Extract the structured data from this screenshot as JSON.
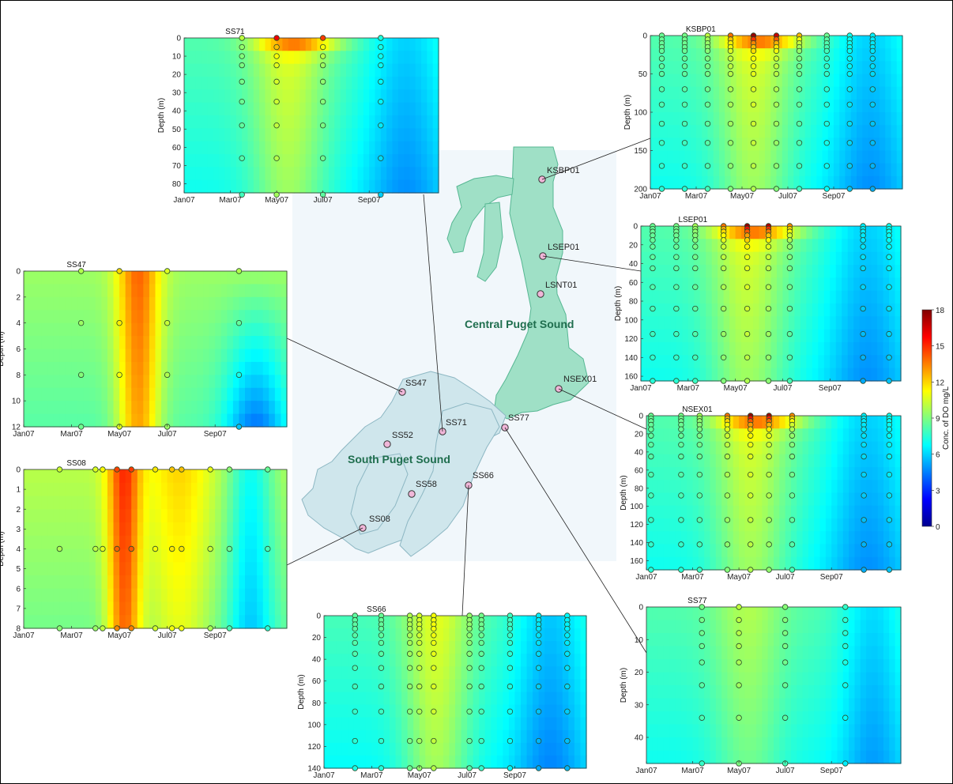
{
  "figure": {
    "regions": [
      "Central Puget Sound",
      "South Puget Sound"
    ],
    "colorbar": {
      "label": "Conc. of DO mg/L",
      "ticks": [
        0,
        3,
        6,
        9,
        12,
        15,
        18
      ]
    }
  },
  "stations": [
    "KSBP01",
    "LSEP01",
    "LSNT01",
    "NSEX01",
    "SS77",
    "SS71",
    "SS47",
    "SS52",
    "SS58",
    "SS66",
    "SS08"
  ],
  "chart_data": [
    {
      "type": "heatmap",
      "title": "SS71",
      "ylabel": "Depth (m)",
      "ylim": [
        0,
        85
      ],
      "xlim": [
        0,
        11
      ],
      "x_ticks": [
        "Jan07",
        "Mar07",
        "May07",
        "Jul07",
        "Sep07"
      ],
      "y_ticks": [
        0,
        10,
        20,
        30,
        40,
        50,
        60,
        70,
        80
      ],
      "samples": [
        {
          "t": 2.5,
          "depths": [
            0,
            5,
            10,
            15,
            24,
            35,
            48,
            66,
            86
          ]
        },
        {
          "t": 4.0,
          "depths": [
            0,
            5,
            10,
            15,
            24,
            35,
            48,
            66,
            86
          ]
        },
        {
          "t": 6.0,
          "depths": [
            0,
            5,
            10,
            15,
            24,
            35,
            48,
            66,
            86
          ]
        },
        {
          "t": 8.5,
          "depths": [
            0,
            5,
            10,
            15,
            24,
            35,
            48,
            66,
            86
          ]
        }
      ]
    },
    {
      "type": "heatmap",
      "title": "KSBP01",
      "ylabel": "Depth (m)",
      "ylim": [
        0,
        200
      ],
      "xlim": [
        0,
        11
      ],
      "x_ticks": [
        "Jan07",
        "Mar07",
        "May07",
        "Jul07",
        "Sep07"
      ],
      "y_ticks": [
        0,
        50,
        100,
        150,
        200
      ],
      "samples": [
        {
          "t": 0.5,
          "depths": [
            0,
            5,
            10,
            15,
            20,
            30,
            40,
            50,
            70,
            90,
            115,
            140,
            170,
            200
          ]
        },
        {
          "t": 1.5,
          "depths": [
            0,
            5,
            10,
            15,
            20,
            30,
            40,
            50,
            70,
            90,
            115,
            140,
            170,
            200
          ]
        },
        {
          "t": 2.5,
          "depths": [
            0,
            5,
            10,
            15,
            20,
            30,
            40,
            50,
            70,
            90,
            115,
            140,
            170,
            200
          ]
        },
        {
          "t": 3.5,
          "depths": [
            0,
            5,
            10,
            15,
            20,
            30,
            40,
            50,
            70,
            90,
            115,
            140,
            170,
            200
          ]
        },
        {
          "t": 4.5,
          "depths": [
            0,
            5,
            10,
            15,
            20,
            30,
            40,
            50,
            70,
            90,
            115,
            140,
            170,
            200
          ]
        },
        {
          "t": 5.5,
          "depths": [
            0,
            5,
            10,
            15,
            20,
            30,
            40,
            50,
            70,
            90,
            115,
            140,
            170,
            200
          ]
        },
        {
          "t": 6.5,
          "depths": [
            0,
            5,
            10,
            15,
            20,
            30,
            40,
            50,
            70,
            90,
            115,
            140,
            170,
            200
          ]
        },
        {
          "t": 7.7,
          "depths": [
            0,
            5,
            10,
            15,
            20,
            30,
            40,
            50,
            70,
            90,
            115,
            140,
            170,
            200
          ]
        },
        {
          "t": 8.7,
          "depths": [
            0,
            5,
            10,
            15,
            20,
            30,
            40,
            50,
            70,
            90,
            115,
            140,
            170,
            200
          ]
        },
        {
          "t": 9.7,
          "depths": [
            0,
            5,
            10,
            15,
            20,
            30,
            40,
            50,
            70,
            90,
            115,
            140,
            170,
            200
          ]
        }
      ]
    },
    {
      "type": "heatmap",
      "title": "LSEP01",
      "ylabel": "Depth (m)",
      "ylim": [
        0,
        165
      ],
      "xlim": [
        0,
        11
      ],
      "x_ticks": [
        "Jan07",
        "Mar07",
        "May07",
        "Jul07",
        "Sep07"
      ],
      "y_ticks": [
        0,
        20,
        40,
        60,
        80,
        100,
        120,
        140,
        160
      ],
      "samples": [
        {
          "t": 0.5,
          "depths": [
            0,
            3,
            6,
            10,
            15,
            22,
            33,
            45,
            65,
            88,
            115,
            140,
            165
          ]
        },
        {
          "t": 1.5,
          "depths": [
            0,
            3,
            6,
            10,
            15,
            22,
            33,
            45,
            65,
            88,
            115,
            140,
            165
          ]
        },
        {
          "t": 2.3,
          "depths": [
            0,
            3,
            6,
            10,
            15,
            22,
            33,
            45,
            65,
            88,
            115,
            140,
            165
          ]
        },
        {
          "t": 3.5,
          "depths": [
            0,
            3,
            6,
            10,
            15,
            22,
            33,
            45,
            65,
            88,
            115,
            140,
            165
          ]
        },
        {
          "t": 4.5,
          "depths": [
            0,
            3,
            6,
            10,
            15,
            22,
            33,
            45,
            65,
            88,
            115,
            140,
            165
          ]
        },
        {
          "t": 5.4,
          "depths": [
            0,
            3,
            6,
            10,
            15,
            22,
            33,
            45,
            65,
            88,
            115,
            140,
            165
          ]
        },
        {
          "t": 6.3,
          "depths": [
            0,
            3,
            6,
            10,
            15,
            22,
            33,
            45,
            65,
            88,
            115,
            140,
            165
          ]
        },
        {
          "t": 9.4,
          "depths": [
            0,
            3,
            6,
            10,
            15,
            22,
            33,
            45,
            65,
            88,
            115,
            140,
            165
          ]
        },
        {
          "t": 10.5,
          "depths": [
            0,
            3,
            6,
            10,
            15,
            22,
            33,
            45,
            65,
            88,
            115,
            140,
            165
          ]
        }
      ]
    },
    {
      "type": "heatmap",
      "title": "SS47",
      "ylabel": "Depth (m)",
      "ylim": [
        0,
        12
      ],
      "xlim": [
        0,
        11
      ],
      "x_ticks": [
        "Jan07",
        "Mar07",
        "May07",
        "Jul07",
        "Sep07"
      ],
      "y_ticks": [
        0,
        2,
        4,
        6,
        8,
        10,
        12
      ],
      "samples": [
        {
          "t": 2.4,
          "depths": [
            0,
            4,
            8,
            12
          ]
        },
        {
          "t": 4.0,
          "depths": [
            0,
            4,
            8,
            12
          ]
        },
        {
          "t": 6.0,
          "depths": [
            0,
            4,
            8,
            12
          ]
        },
        {
          "t": 9.0,
          "depths": [
            0,
            4,
            8,
            12
          ]
        }
      ]
    },
    {
      "type": "heatmap",
      "title": "NSEX01",
      "ylabel": "Depth (m)",
      "ylim": [
        0,
        170
      ],
      "xlim": [
        0,
        11
      ],
      "x_ticks": [
        "Jan07",
        "Mar07",
        "May07",
        "Jul07",
        "Sep07"
      ],
      "y_ticks": [
        0,
        20,
        40,
        60,
        80,
        100,
        120,
        140,
        160
      ],
      "samples": [
        {
          "t": 0.2,
          "depths": [
            0,
            3,
            6,
            10,
            15,
            22,
            32,
            45,
            65,
            88,
            115,
            142,
            170
          ]
        },
        {
          "t": 1.5,
          "depths": [
            0,
            3,
            6,
            10,
            15,
            22,
            32,
            45,
            65,
            88,
            115,
            142,
            170
          ]
        },
        {
          "t": 2.3,
          "depths": [
            0,
            3,
            6,
            10,
            15,
            22,
            32,
            45,
            65,
            88,
            115,
            142,
            170
          ]
        },
        {
          "t": 3.5,
          "depths": [
            0,
            3,
            6,
            10,
            15,
            22,
            32,
            45,
            65,
            88,
            115,
            142,
            170
          ]
        },
        {
          "t": 4.5,
          "depths": [
            0,
            3,
            6,
            10,
            15,
            22,
            32,
            45,
            65,
            88,
            115,
            142,
            170
          ]
        },
        {
          "t": 5.3,
          "depths": [
            0,
            3,
            6,
            10,
            15,
            22,
            32,
            45,
            65,
            88,
            115,
            142,
            170
          ]
        },
        {
          "t": 6.3,
          "depths": [
            0,
            3,
            6,
            10,
            15,
            22,
            32,
            45,
            65,
            88,
            115,
            142,
            170
          ]
        },
        {
          "t": 9.4,
          "depths": [
            0,
            3,
            6,
            10,
            15,
            22,
            32,
            45,
            65,
            88,
            115,
            142,
            170
          ]
        },
        {
          "t": 10.5,
          "depths": [
            0,
            3,
            6,
            10,
            15,
            22,
            32,
            45,
            65,
            88,
            115,
            142,
            170
          ]
        }
      ]
    },
    {
      "type": "heatmap",
      "title": "SS08",
      "ylabel": "Depth (m)",
      "ylim": [
        0,
        8
      ],
      "xlim": [
        0,
        11
      ],
      "x_ticks": [
        "Jan07",
        "Mar07",
        "May07",
        "Jul07",
        "Sep07"
      ],
      "y_ticks": [
        0,
        1,
        2,
        3,
        4,
        5,
        6,
        7,
        8
      ],
      "samples": [
        {
          "t": 1.5,
          "depths": [
            0,
            4,
            8
          ]
        },
        {
          "t": 3.0,
          "depths": [
            0,
            4,
            8
          ]
        },
        {
          "t": 3.3,
          "depths": [
            0,
            4,
            8
          ]
        },
        {
          "t": 3.9,
          "depths": [
            0,
            4,
            8
          ]
        },
        {
          "t": 4.5,
          "depths": [
            0,
            4,
            8
          ]
        },
        {
          "t": 5.5,
          "depths": [
            0,
            4,
            8
          ]
        },
        {
          "t": 6.2,
          "depths": [
            0,
            4,
            8
          ]
        },
        {
          "t": 6.6,
          "depths": [
            0,
            4,
            8
          ]
        },
        {
          "t": 7.8,
          "depths": [
            0,
            4,
            8
          ]
        },
        {
          "t": 8.6,
          "depths": [
            0,
            4,
            8
          ]
        },
        {
          "t": 10.2,
          "depths": [
            0,
            4,
            8
          ]
        }
      ]
    },
    {
      "type": "heatmap",
      "title": "SS66",
      "ylabel": "Depth (m)",
      "ylim": [
        0,
        140
      ],
      "xlim": [
        0,
        11
      ],
      "x_ticks": [
        "Jan07",
        "Mar07",
        "May07",
        "Jul07",
        "Sep07"
      ],
      "y_ticks": [
        0,
        20,
        40,
        60,
        80,
        100,
        120,
        140
      ],
      "samples": [
        {
          "t": 1.3,
          "depths": [
            0,
            4,
            8,
            12,
            18,
            25,
            35,
            48,
            65,
            88,
            115,
            140
          ]
        },
        {
          "t": 2.4,
          "depths": [
            0,
            4,
            8,
            12,
            18,
            25,
            35,
            48,
            65,
            88,
            115,
            140
          ]
        },
        {
          "t": 3.6,
          "depths": [
            0,
            4,
            8,
            12,
            18,
            25,
            35,
            48,
            65,
            88,
            115,
            140
          ]
        },
        {
          "t": 4.0,
          "depths": [
            0,
            4,
            8,
            12,
            18,
            25,
            35,
            48,
            65,
            88,
            115,
            140
          ]
        },
        {
          "t": 4.6,
          "depths": [
            0,
            4,
            8,
            12,
            18,
            25,
            35,
            48,
            65,
            88,
            115,
            140
          ]
        },
        {
          "t": 6.1,
          "depths": [
            0,
            4,
            8,
            12,
            18,
            25,
            35,
            48,
            65,
            88,
            115,
            140
          ]
        },
        {
          "t": 6.6,
          "depths": [
            0,
            4,
            8,
            12,
            18,
            25,
            35,
            48,
            65,
            88,
            115,
            140
          ]
        },
        {
          "t": 7.8,
          "depths": [
            0,
            4,
            8,
            12,
            18,
            25,
            35,
            48,
            65,
            88,
            115,
            140
          ]
        },
        {
          "t": 9.0,
          "depths": [
            0,
            4,
            8,
            12,
            18,
            25,
            35,
            48,
            65,
            88,
            115,
            140
          ]
        },
        {
          "t": 10.2,
          "depths": [
            0,
            4,
            8,
            12,
            18,
            25,
            35,
            48,
            65,
            88,
            115,
            140
          ]
        }
      ]
    },
    {
      "type": "heatmap",
      "title": "SS77",
      "ylabel": "Depth (m)",
      "ylim": [
        0,
        48
      ],
      "xlim": [
        0,
        11
      ],
      "x_ticks": [
        "Jan07",
        "Mar07",
        "May07",
        "Jul07",
        "Sep07"
      ],
      "y_ticks": [
        0,
        10,
        20,
        30,
        40
      ],
      "samples": [
        {
          "t": 2.4,
          "depths": [
            0,
            4,
            8,
            12,
            17,
            24,
            34,
            48
          ]
        },
        {
          "t": 4.0,
          "depths": [
            0,
            4,
            8,
            12,
            17,
            24,
            34,
            48
          ]
        },
        {
          "t": 6.0,
          "depths": [
            0,
            4,
            8,
            12,
            17,
            24,
            34,
            48
          ]
        },
        {
          "t": 8.6,
          "depths": [
            0,
            4,
            8,
            12,
            17,
            24,
            34,
            48
          ]
        }
      ]
    }
  ]
}
